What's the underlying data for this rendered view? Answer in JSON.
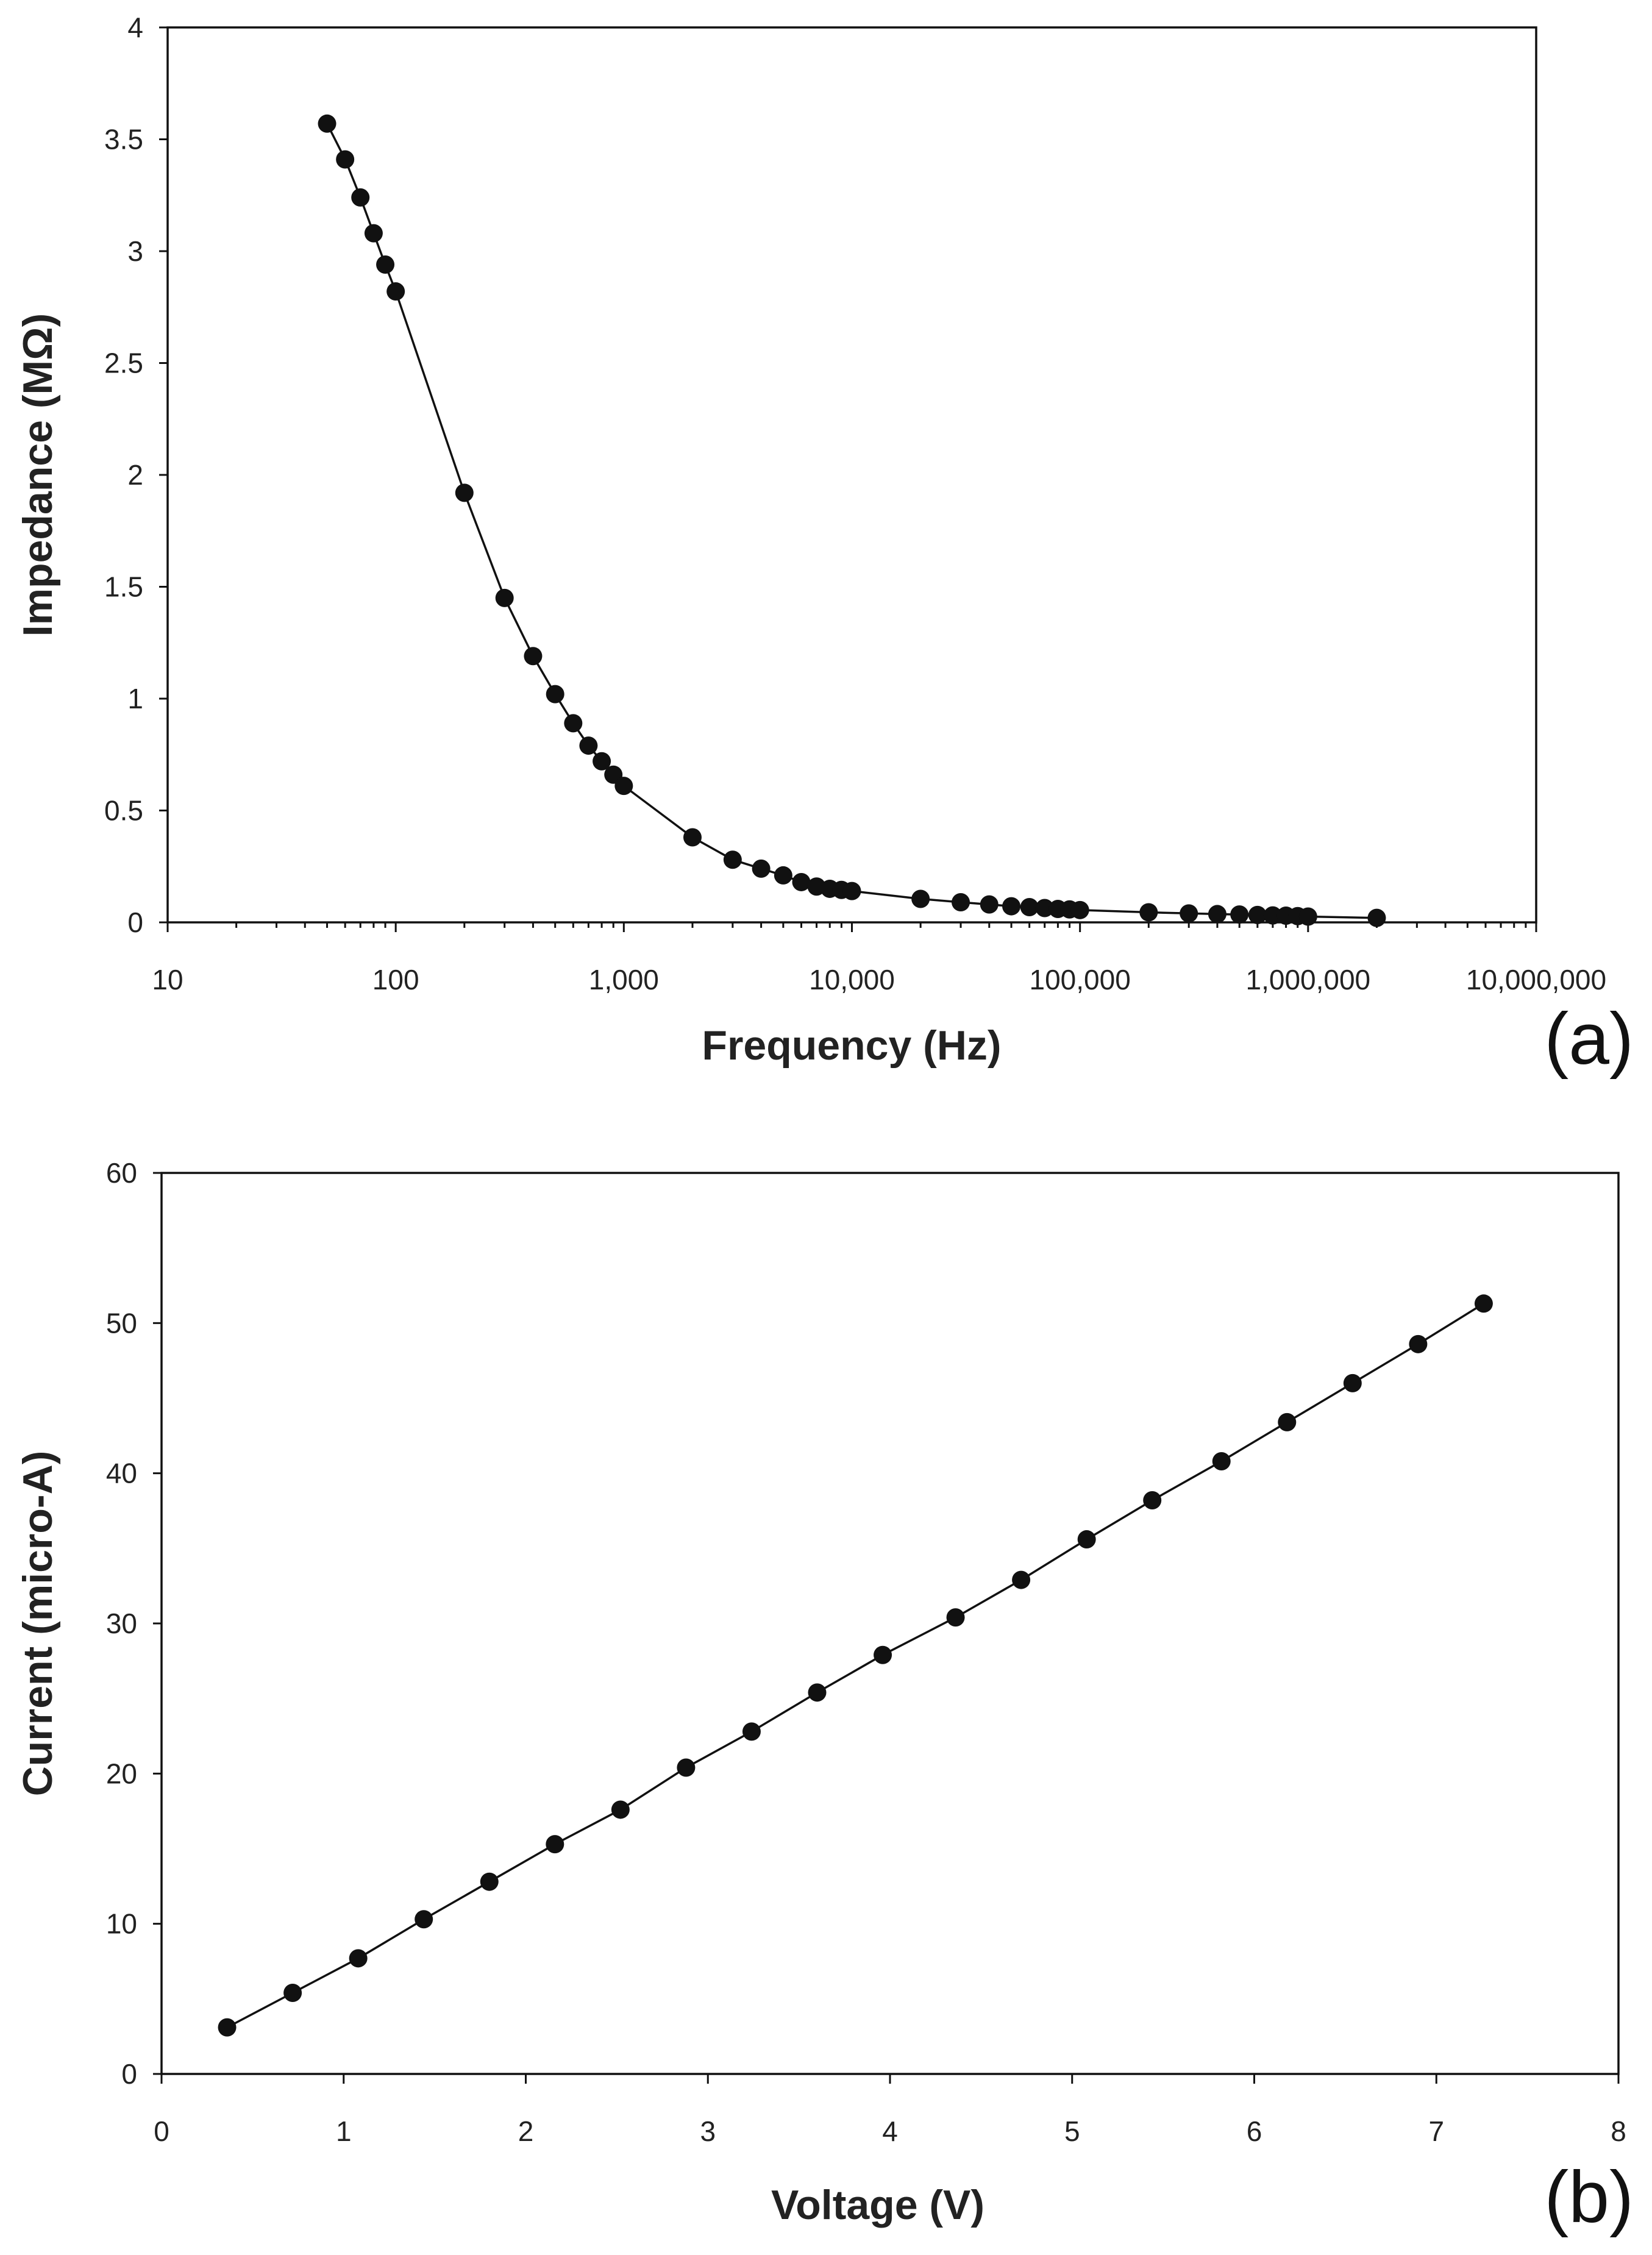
{
  "chart_data": [
    {
      "id": "a",
      "type": "scatter",
      "panel_label": "(a)",
      "xlabel": "Frequency (Hz)",
      "ylabel": "Impedance (MΩ)",
      "xscale": "log",
      "xlim": [
        10,
        10000000
      ],
      "ylim": [
        0,
        4
      ],
      "xticks": [
        10,
        100,
        1000,
        10000,
        100000,
        1000000,
        10000000
      ],
      "xtick_labels": [
        "10",
        "100",
        "1,000",
        "10,000",
        "100,000",
        "1,000,000",
        "10,000,000"
      ],
      "yticks": [
        0,
        0.5,
        1,
        1.5,
        2,
        2.5,
        3,
        3.5,
        4
      ],
      "ytick_labels": [
        "0",
        "0.5",
        "1",
        "1.5",
        "2",
        "2.5",
        "3",
        "3.5",
        "4"
      ],
      "x": [
        50,
        60,
        70,
        80,
        90,
        100,
        200,
        300,
        400,
        500,
        600,
        700,
        800,
        900,
        1000,
        2000,
        3000,
        4000,
        5000,
        6000,
        7000,
        8000,
        9000,
        10000,
        20000,
        30000,
        40000,
        50000,
        60000,
        70000,
        80000,
        90000,
        100000,
        200000,
        300000,
        400000,
        500000,
        600000,
        700000,
        800000,
        900000,
        1000000,
        2000000
      ],
      "y": [
        3.57,
        3.41,
        3.24,
        3.08,
        2.94,
        2.82,
        1.92,
        1.45,
        1.19,
        1.02,
        0.89,
        0.79,
        0.72,
        0.66,
        0.61,
        0.38,
        0.28,
        0.24,
        0.21,
        0.18,
        0.16,
        0.15,
        0.145,
        0.14,
        0.105,
        0.09,
        0.08,
        0.072,
        0.068,
        0.064,
        0.06,
        0.058,
        0.055,
        0.045,
        0.04,
        0.037,
        0.035,
        0.033,
        0.031,
        0.03,
        0.028,
        0.026,
        0.02
      ]
    },
    {
      "id": "b",
      "type": "scatter",
      "panel_label": "(b)",
      "xlabel": "Voltage (V)",
      "ylabel": "Current (micro-A)",
      "xscale": "linear",
      "xlim": [
        0,
        8
      ],
      "ylim": [
        0,
        60
      ],
      "xticks": [
        0,
        1,
        2,
        3,
        4,
        5,
        6,
        7,
        8
      ],
      "xtick_labels": [
        "0",
        "1",
        "2",
        "3",
        "4",
        "5",
        "6",
        "7",
        "8"
      ],
      "yticks": [
        0,
        10,
        20,
        30,
        40,
        50,
        60
      ],
      "ytick_labels": [
        "0",
        "10",
        "20",
        "30",
        "40",
        "50",
        "60"
      ],
      "x": [
        0.36,
        0.72,
        1.08,
        1.44,
        1.8,
        2.16,
        2.52,
        2.88,
        3.24,
        3.6,
        3.96,
        4.36,
        4.72,
        5.08,
        5.44,
        5.82,
        6.18,
        6.54,
        6.9,
        7.26
      ],
      "y": [
        3.1,
        5.4,
        7.7,
        10.3,
        12.8,
        15.3,
        17.6,
        20.4,
        22.8,
        25.4,
        27.9,
        30.4,
        32.9,
        35.6,
        38.2,
        40.8,
        43.4,
        46.0,
        48.6,
        51.3
      ]
    }
  ]
}
